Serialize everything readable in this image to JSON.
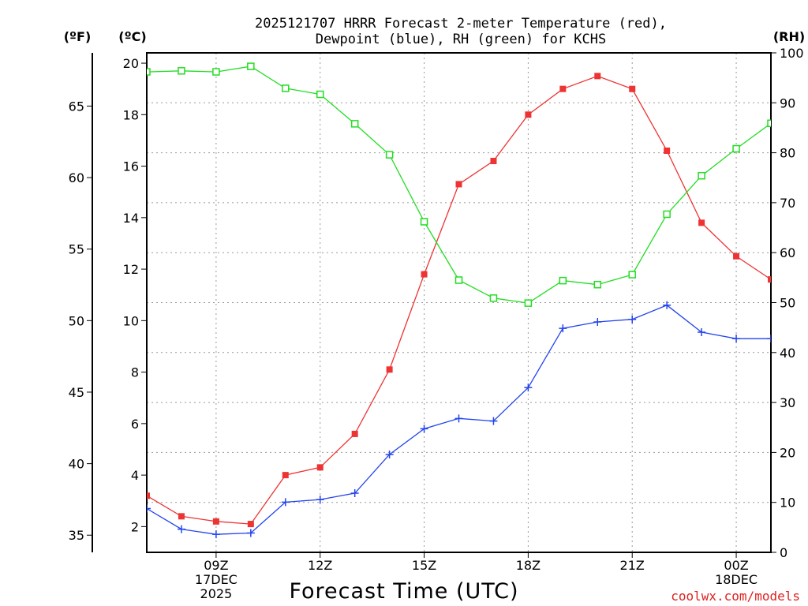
{
  "chart_data": {
    "type": "line",
    "title_lines": [
      "2025121707 HRRR Forecast 2-meter Temperature (red),",
      "Dewpoint (blue), RH (green) for KCHS"
    ],
    "units": {
      "fahrenheit": "(ºF)",
      "celsius": "(ºC)",
      "rh": "(RH)"
    },
    "xlabel": "Forecast Time (UTC)",
    "credit": "coolwx.com/models",
    "x_hours": [
      7,
      8,
      9,
      10,
      11,
      12,
      13,
      14,
      15,
      16,
      17,
      18,
      19,
      20,
      21,
      22,
      23,
      24,
      25
    ],
    "xlim": [
      7,
      25
    ],
    "x_ticks": [
      {
        "hour": 9,
        "lines": [
          "09Z",
          "17DEC",
          "2025"
        ]
      },
      {
        "hour": 12,
        "lines": [
          "12Z"
        ]
      },
      {
        "hour": 15,
        "lines": [
          "15Z"
        ]
      },
      {
        "hour": 18,
        "lines": [
          "18Z"
        ]
      },
      {
        "hour": 21,
        "lines": [
          "21Z"
        ]
      },
      {
        "hour": 24,
        "lines": [
          "00Z",
          "18DEC"
        ]
      }
    ],
    "celsius_axis": {
      "min": 1.0,
      "max": 20.4,
      "ticks": [
        2,
        4,
        6,
        8,
        10,
        12,
        14,
        16,
        18,
        20
      ]
    },
    "fahrenheit_ticks": [
      35,
      40,
      45,
      50,
      55,
      60,
      65
    ],
    "rh_axis": {
      "min": 0,
      "max": 100,
      "ticks": [
        0,
        10,
        20,
        30,
        40,
        50,
        60,
        70,
        80,
        90,
        100
      ]
    },
    "series": [
      {
        "name": "Temperature",
        "unit": "C",
        "color": "#ee3333",
        "marker": "filled-square",
        "values": [
          3.2,
          2.4,
          2.2,
          2.1,
          4.0,
          4.3,
          5.6,
          8.1,
          11.8,
          15.3,
          16.2,
          18.0,
          19.0,
          19.5,
          19.0,
          16.6,
          13.8,
          12.5,
          11.6
        ]
      },
      {
        "name": "Dewpoint",
        "unit": "C",
        "color": "#2244ee",
        "marker": "plus",
        "values": [
          2.7,
          1.9,
          1.7,
          1.75,
          2.95,
          3.05,
          3.3,
          4.8,
          5.8,
          6.2,
          6.1,
          7.4,
          9.7,
          9.95,
          10.05,
          10.6,
          9.55,
          9.3,
          9.3
        ]
      },
      {
        "name": "RH",
        "unit": "%",
        "color": "#22dd22",
        "marker": "open-square",
        "values": [
          96.2,
          96.4,
          96.2,
          97.3,
          92.9,
          91.7,
          85.8,
          79.6,
          66.2,
          54.5,
          50.9,
          49.9,
          54.4,
          53.6,
          55.6,
          67.7,
          75.4,
          80.8,
          85.9
        ]
      }
    ]
  }
}
